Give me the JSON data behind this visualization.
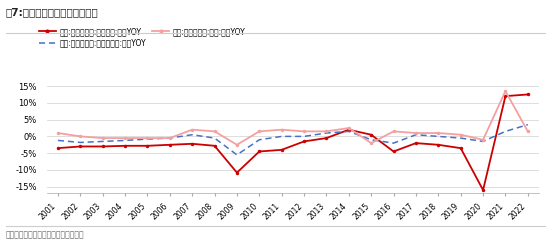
{
  "title": "图7:日本零售渠道市场规模增速",
  "footnote": "数据来源：日本统计局，中信建投证券",
  "years": [
    2001,
    2002,
    2003,
    2004,
    2005,
    2006,
    2007,
    2008,
    2009,
    2010,
    2011,
    2012,
    2013,
    2014,
    2015,
    2016,
    2017,
    2018,
    2019,
    2020,
    2021,
    2022
  ],
  "department_store": [
    -3.5,
    -3.0,
    -3.0,
    -2.8,
    -2.8,
    -2.5,
    -2.2,
    -2.8,
    -10.8,
    -4.5,
    -4.0,
    -1.5,
    -0.5,
    2.0,
    0.5,
    -4.5,
    -2.0,
    -2.5,
    -3.5,
    -16.0,
    12.0,
    12.5
  ],
  "large_retail": [
    -1.2,
    -1.8,
    -1.5,
    -1.2,
    -0.8,
    -0.5,
    0.5,
    -0.5,
    -5.5,
    -1.0,
    0.0,
    0.0,
    1.0,
    1.5,
    -1.0,
    -2.0,
    0.5,
    0.0,
    -0.5,
    -1.5,
    1.5,
    3.5
  ],
  "supermarket": [
    1.0,
    0.0,
    -0.5,
    -0.5,
    -0.5,
    -0.5,
    2.0,
    1.5,
    -2.5,
    1.5,
    2.0,
    1.5,
    1.5,
    2.5,
    -2.0,
    1.5,
    1.0,
    1.0,
    0.5,
    -1.0,
    13.5,
    1.5
  ],
  "dept_color": "#CC0000",
  "large_color": "#4472C4",
  "super_color": "#F4A0A0",
  "ylim": [
    -17,
    17
  ],
  "yticks": [
    -15,
    -10,
    -5,
    0,
    5,
    10,
    15
  ],
  "legend": [
    "日本:商业销售额:百货商店:总计YOY",
    "日本:商业销售额:大型零售店:总计YOY",
    "日本:商业销售额:超市:总计YOY"
  ],
  "bg_color": "#ffffff",
  "title_line_color": "#aaaaaa"
}
